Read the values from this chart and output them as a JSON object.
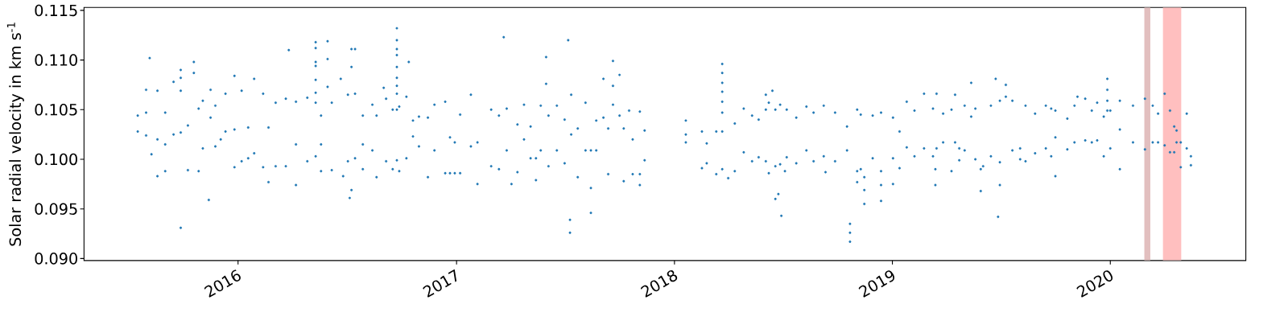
{
  "chart_data": {
    "type": "scatter",
    "ylabel": "Solar radial velocity in km s$^{-1}$",
    "color": "#1f77b4",
    "marker": "circle",
    "xlim": [
      "2015-04-18",
      "2020-08-15"
    ],
    "ylim": [
      0.0898,
      0.1153
    ],
    "xticks": [
      {
        "value": "2016-01-01",
        "label": "2016"
      },
      {
        "value": "2017-01-01",
        "label": "2017"
      },
      {
        "value": "2018-01-01",
        "label": "2018"
      },
      {
        "value": "2019-01-01",
        "label": "2019"
      },
      {
        "value": "2020-01-01",
        "label": "2020"
      }
    ],
    "yticks": [
      {
        "value": 0.09,
        "label": "0.090"
      },
      {
        "value": 0.095,
        "label": "0.095"
      },
      {
        "value": 0.1,
        "label": "0.100"
      },
      {
        "value": 0.105,
        "label": "0.105"
      },
      {
        "value": 0.11,
        "label": "0.110"
      },
      {
        "value": 0.115,
        "label": "0.115"
      }
    ],
    "bands": [
      {
        "axis": "x",
        "from": "2020-02-27",
        "to": "2020-03-08",
        "color": "#e2bfbf"
      },
      {
        "axis": "x",
        "from": "2020-03-29",
        "to": "2020-04-29",
        "color": "#ffbfbf"
      }
    ],
    "x": [
      "2015-07-17",
      "2015-07-17",
      "2015-07-31",
      "2015-07-31",
      "2015-07-31",
      "2015-08-06",
      "2015-08-09",
      "2015-08-19",
      "2015-08-19",
      "2015-08-19",
      "2015-09-01",
      "2015-09-01",
      "2015-09-01",
      "2015-09-15",
      "2015-09-15",
      "2015-09-27",
      "2015-09-27",
      "2015-09-27",
      "2015-09-27",
      "2015-09-27",
      "2015-10-09",
      "2015-10-09",
      "2015-10-19",
      "2015-10-19",
      "2015-10-27",
      "2015-10-27",
      "2015-11-03",
      "2015-11-03",
      "2015-11-13",
      "2015-11-16",
      "2015-11-16",
      "2015-11-24",
      "2015-11-24",
      "2015-12-03",
      "2015-12-11",
      "2015-12-11",
      "2015-12-26",
      "2015-12-26",
      "2015-12-26",
      "2016-01-07",
      "2016-01-07",
      "2016-01-18",
      "2016-01-18",
      "2016-01-28",
      "2016-01-28",
      "2016-02-12",
      "2016-02-12",
      "2016-02-21",
      "2016-02-21",
      "2016-03-04",
      "2016-03-04",
      "2016-03-21",
      "2016-03-21",
      "2016-03-26",
      "2016-04-07",
      "2016-04-07",
      "2016-04-07",
      "2016-04-26",
      "2016-04-26",
      "2016-05-10",
      "2016-05-10",
      "2016-05-10",
      "2016-05-10",
      "2016-05-10",
      "2016-05-10",
      "2016-05-10",
      "2016-05-10",
      "2016-05-19",
      "2016-05-19",
      "2016-05-19",
      "2016-05-30",
      "2016-05-30",
      "2016-05-30",
      "2016-06-06",
      "2016-06-06",
      "2016-06-21",
      "2016-06-25",
      "2016-07-03",
      "2016-07-03",
      "2016-07-06",
      "2016-07-09",
      "2016-07-09",
      "2016-07-09",
      "2016-07-15",
      "2016-07-15",
      "2016-07-15",
      "2016-07-28",
      "2016-07-28",
      "2016-07-28",
      "2016-08-13",
      "2016-08-13",
      "2016-08-20",
      "2016-08-20",
      "2016-09-01",
      "2016-09-05",
      "2016-09-05",
      "2016-09-16",
      "2016-09-16",
      "2016-09-23",
      "2016-09-23",
      "2016-09-23",
      "2016-09-23",
      "2016-09-23",
      "2016-09-23",
      "2016-09-23",
      "2016-09-23",
      "2016-09-23",
      "2016-09-23",
      "2016-09-27",
      "2016-09-27",
      "2016-10-09",
      "2016-10-09",
      "2016-10-13",
      "2016-10-20",
      "2016-10-20",
      "2016-10-30",
      "2016-10-30",
      "2016-11-14",
      "2016-11-14",
      "2016-11-25",
      "2016-11-25",
      "2016-12-13",
      "2016-12-13",
      "2016-12-21",
      "2016-12-21",
      "2016-12-29",
      "2016-12-29",
      "2017-01-07",
      "2017-01-07",
      "2017-01-25",
      "2017-01-25",
      "2017-02-05",
      "2017-02-05",
      "2017-02-28",
      "2017-02-28",
      "2017-03-13",
      "2017-03-13",
      "2017-03-21",
      "2017-03-26",
      "2017-03-26",
      "2017-04-03",
      "2017-04-13",
      "2017-04-13",
      "2017-04-24",
      "2017-04-24",
      "2017-05-05",
      "2017-05-05",
      "2017-05-14",
      "2017-05-14",
      "2017-05-22",
      "2017-05-22",
      "2017-05-31",
      "2017-05-31",
      "2017-06-04",
      "2017-06-04",
      "2017-06-18",
      "2017-06-18",
      "2017-07-01",
      "2017-07-01",
      "2017-07-07",
      "2017-07-10",
      "2017-07-10",
      "2017-07-12",
      "2017-07-12",
      "2017-07-23",
      "2017-07-23",
      "2017-08-05",
      "2017-08-05",
      "2017-08-14",
      "2017-08-14",
      "2017-08-14",
      "2017-08-23",
      "2017-08-23",
      "2017-09-04",
      "2017-09-04",
      "2017-09-12",
      "2017-09-12",
      "2017-09-20",
      "2017-09-20",
      "2017-09-20",
      "2017-10-01",
      "2017-10-01",
      "2017-10-08",
      "2017-10-08",
      "2017-10-17",
      "2017-10-23",
      "2017-10-23",
      "2017-11-04",
      "2017-11-04",
      "2017-11-04",
      "2017-11-12",
      "2017-11-12",
      "2018-01-20",
      "2018-01-20",
      "2018-01-20",
      "2018-02-16",
      "2018-02-16",
      "2018-02-24",
      "2018-02-24",
      "2018-03-12",
      "2018-03-12",
      "2018-03-22",
      "2018-03-22",
      "2018-03-22",
      "2018-03-22",
      "2018-03-22",
      "2018-03-22",
      "2018-03-22",
      "2018-03-22",
      "2018-04-01",
      "2018-04-12",
      "2018-04-12",
      "2018-04-27",
      "2018-04-27",
      "2018-05-11",
      "2018-05-11",
      "2018-05-22",
      "2018-05-22",
      "2018-06-03",
      "2018-06-03",
      "2018-06-03",
      "2018-06-08",
      "2018-06-08",
      "2018-06-14",
      "2018-06-19",
      "2018-06-19",
      "2018-06-19",
      "2018-06-24",
      "2018-06-27",
      "2018-06-27",
      "2018-06-29",
      "2018-07-05",
      "2018-07-08",
      "2018-07-08",
      "2018-07-24",
      "2018-07-24",
      "2018-08-10",
      "2018-08-10",
      "2018-08-22",
      "2018-08-22",
      "2018-09-08",
      "2018-09-08",
      "2018-09-11",
      "2018-09-27",
      "2018-09-27",
      "2018-10-17",
      "2018-10-17",
      "2018-10-22",
      "2018-10-22",
      "2018-10-22",
      "2018-11-03",
      "2018-11-03",
      "2018-11-03",
      "2018-11-09",
      "2018-11-09",
      "2018-11-15",
      "2018-11-15",
      "2018-11-15",
      "2018-11-29",
      "2018-11-29",
      "2018-12-13",
      "2018-12-13",
      "2018-12-13",
      "2018-12-13",
      "2019-01-02",
      "2019-01-02",
      "2019-01-02",
      "2019-01-13",
      "2019-01-13",
      "2019-01-25",
      "2019-01-25",
      "2019-02-07",
      "2019-02-07",
      "2019-02-23",
      "2019-02-23",
      "2019-03-10",
      "2019-03-10",
      "2019-03-14",
      "2019-03-14",
      "2019-03-16",
      "2019-03-16",
      "2019-03-27",
      "2019-03-27",
      "2019-04-10",
      "2019-04-10",
      "2019-04-16",
      "2019-04-16",
      "2019-04-23",
      "2019-04-23",
      "2019-05-02",
      "2019-05-02",
      "2019-05-13",
      "2019-05-13",
      "2019-05-20",
      "2019-05-20",
      "2019-05-29",
      "2019-05-29",
      "2019-06-02",
      "2019-06-15",
      "2019-06-15",
      "2019-06-23",
      "2019-06-27",
      "2019-06-30",
      "2019-06-30",
      "2019-06-30",
      "2019-07-10",
      "2019-07-10",
      "2019-07-21",
      "2019-07-21",
      "2019-08-03",
      "2019-08-03",
      "2019-08-12",
      "2019-08-12",
      "2019-08-28",
      "2019-08-28",
      "2019-09-15",
      "2019-09-15",
      "2019-09-24",
      "2019-09-24",
      "2019-10-01",
      "2019-10-01",
      "2019-10-01",
      "2019-10-21",
      "2019-10-21",
      "2019-11-02",
      "2019-11-02",
      "2019-11-07",
      "2019-11-20",
      "2019-11-20",
      "2019-12-01",
      "2019-12-01",
      "2019-12-10",
      "2019-12-10",
      "2019-12-21",
      "2019-12-21",
      "2019-12-27",
      "2019-12-27",
      "2019-12-27",
      "2019-12-27",
      "2020-01-01",
      "2020-01-01",
      "2020-01-17",
      "2020-01-17",
      "2020-01-17",
      "2020-02-08",
      "2020-02-08",
      "2020-02-28",
      "2020-02-28",
      "2020-03-12",
      "2020-03-12",
      "2020-03-21",
      "2020-03-21",
      "2020-04-01",
      "2020-04-01",
      "2020-04-10",
      "2020-04-10",
      "2020-04-17",
      "2020-04-17",
      "2020-04-21",
      "2020-04-21",
      "2020-04-28",
      "2020-04-28",
      "2020-05-08",
      "2020-05-08",
      "2020-05-15",
      "2020-05-15"
    ],
    "values": [
      0.1044,
      0.1028,
      0.107,
      0.1024,
      0.1047,
      0.1102,
      0.1005,
      0.1069,
      0.0983,
      0.102,
      0.1047,
      0.0988,
      0.1015,
      0.1078,
      0.1025,
      0.1069,
      0.1027,
      0.109,
      0.1082,
      0.0931,
      0.1034,
      0.0989,
      0.1098,
      0.1087,
      0.1051,
      0.0988,
      0.1059,
      0.1011,
      0.0959,
      0.107,
      0.1042,
      0.1054,
      0.1013,
      0.102,
      0.1066,
      0.1028,
      0.1084,
      0.0992,
      0.103,
      0.1069,
      0.0998,
      0.1032,
      0.1001,
      0.1081,
      0.1006,
      0.1066,
      0.0992,
      0.1032,
      0.0977,
      0.1057,
      0.0993,
      0.1061,
      0.0993,
      0.111,
      0.1058,
      0.0974,
      0.1015,
      0.1062,
      0.0998,
      0.1118,
      0.1112,
      0.1098,
      0.1094,
      0.108,
      0.1067,
      0.1057,
      0.1003,
      0.1044,
      0.0988,
      0.1015,
      0.1119,
      0.1101,
      0.1073,
      0.1057,
      0.0989,
      0.1081,
      0.0983,
      0.1065,
      0.0998,
      0.0961,
      0.1111,
      0.1093,
      0.0969,
      0.1066,
      0.1001,
      0.1111,
      0.1044,
      0.099,
      0.1015,
      0.1055,
      0.1009,
      0.1044,
      0.0982,
      0.1072,
      0.1061,
      0.0998,
      0.105,
      0.099,
      0.1132,
      0.112,
      0.1111,
      0.1105,
      0.1093,
      0.1082,
      0.1074,
      0.1066,
      0.105,
      0.0999,
      0.1053,
      0.0988,
      0.1063,
      0.1001,
      0.1098,
      0.1039,
      0.1023,
      0.1043,
      0.1013,
      0.1042,
      0.0982,
      0.1055,
      0.1009,
      0.1058,
      0.0986,
      0.1022,
      0.0986,
      0.1017,
      0.0986,
      0.1045,
      0.0986,
      0.1065,
      0.1013,
      0.1017,
      0.0975,
      0.105,
      0.0993,
      0.1044,
      0.099,
      0.1123,
      0.1051,
      0.1009,
      0.0975,
      0.1035,
      0.0987,
      0.1055,
      0.102,
      0.1033,
      0.1001,
      0.1001,
      0.0979,
      0.1054,
      0.1009,
      0.1103,
      0.1076,
      0.1044,
      0.0993,
      0.1054,
      0.1009,
      0.104,
      0.0996,
      0.112,
      0.0939,
      0.0926,
      0.1065,
      0.1025,
      0.1031,
      0.0982,
      0.1057,
      0.1009,
      0.1009,
      0.0971,
      0.0946,
      0.1039,
      0.1009,
      0.1081,
      0.1042,
      0.1031,
      0.0985,
      0.1099,
      0.1074,
      0.1055,
      0.1085,
      0.1044,
      0.1031,
      0.0978,
      0.1049,
      0.102,
      0.0985,
      0.1048,
      0.0985,
      0.0974,
      0.1029,
      0.0999,
      0.1039,
      0.1025,
      0.1017,
      0.1028,
      0.0991,
      0.1016,
      0.0996,
      0.1028,
      0.0985,
      0.1096,
      0.1087,
      0.1077,
      0.1068,
      0.1058,
      0.1047,
      0.1028,
      0.099,
      0.0981,
      0.1036,
      0.0988,
      0.1051,
      0.1007,
      0.1044,
      0.0998,
      0.104,
      0.1002,
      0.1065,
      0.105,
      0.0998,
      0.1057,
      0.0986,
      0.1069,
      0.096,
      0.105,
      0.0993,
      0.0965,
      0.1055,
      0.0995,
      0.0943,
      0.0988,
      0.105,
      0.1002,
      0.1042,
      0.0996,
      0.1053,
      0.1009,
      0.1047,
      0.0998,
      0.1054,
      0.1003,
      0.0987,
      0.1047,
      0.0998,
      0.1033,
      0.1009,
      0.0935,
      0.0926,
      0.0917,
      0.0977,
      0.105,
      0.0988,
      0.1045,
      0.099,
      0.0982,
      0.0969,
      0.0955,
      0.1044,
      0.1001,
      0.1047,
      0.0988,
      0.0974,
      0.0958,
      0.1042,
      0.1001,
      0.0975,
      0.1028,
      0.0991,
      0.1058,
      0.1012,
      0.1049,
      0.1003,
      0.1066,
      0.1011,
      0.1051,
      0.1003,
      0.0974,
      0.099,
      0.1066,
      0.1011,
      0.1046,
      0.1017,
      0.105,
      0.0988,
      0.1065,
      0.1017,
      0.1011,
      0.0999,
      0.1054,
      0.1009,
      0.1077,
      0.1043,
      0.1051,
      0.1,
      0.099,
      0.0968,
      0.0993,
      0.1054,
      0.1003,
      0.1081,
      0.0942,
      0.0974,
      0.1059,
      0.0997,
      0.1075,
      0.1063,
      0.1059,
      0.1009,
      0.1011,
      0.1,
      0.1054,
      0.0998,
      0.1046,
      0.1006,
      0.1054,
      0.1011,
      0.1051,
      0.1003,
      0.1049,
      0.1022,
      0.0983,
      0.1041,
      0.101,
      0.1054,
      0.1017,
      0.1063,
      0.1061,
      0.1019,
      0.1049,
      0.1017,
      0.1057,
      0.1019,
      0.1043,
      0.1003,
      0.1081,
      0.107,
      0.1059,
      0.1049,
      0.1049,
      0.1011,
      0.1059,
      0.103,
      0.099,
      0.1054,
      0.1017,
      0.1061,
      0.101,
      0.1054,
      0.1017,
      0.1046,
      0.1017,
      0.1066,
      0.1014,
      0.1049,
      0.1007,
      0.1033,
      0.1007,
      0.1029,
      0.1017,
      0.1017,
      0.0992,
      0.1046,
      0.1011,
      0.1003,
      0.0994
    ]
  }
}
